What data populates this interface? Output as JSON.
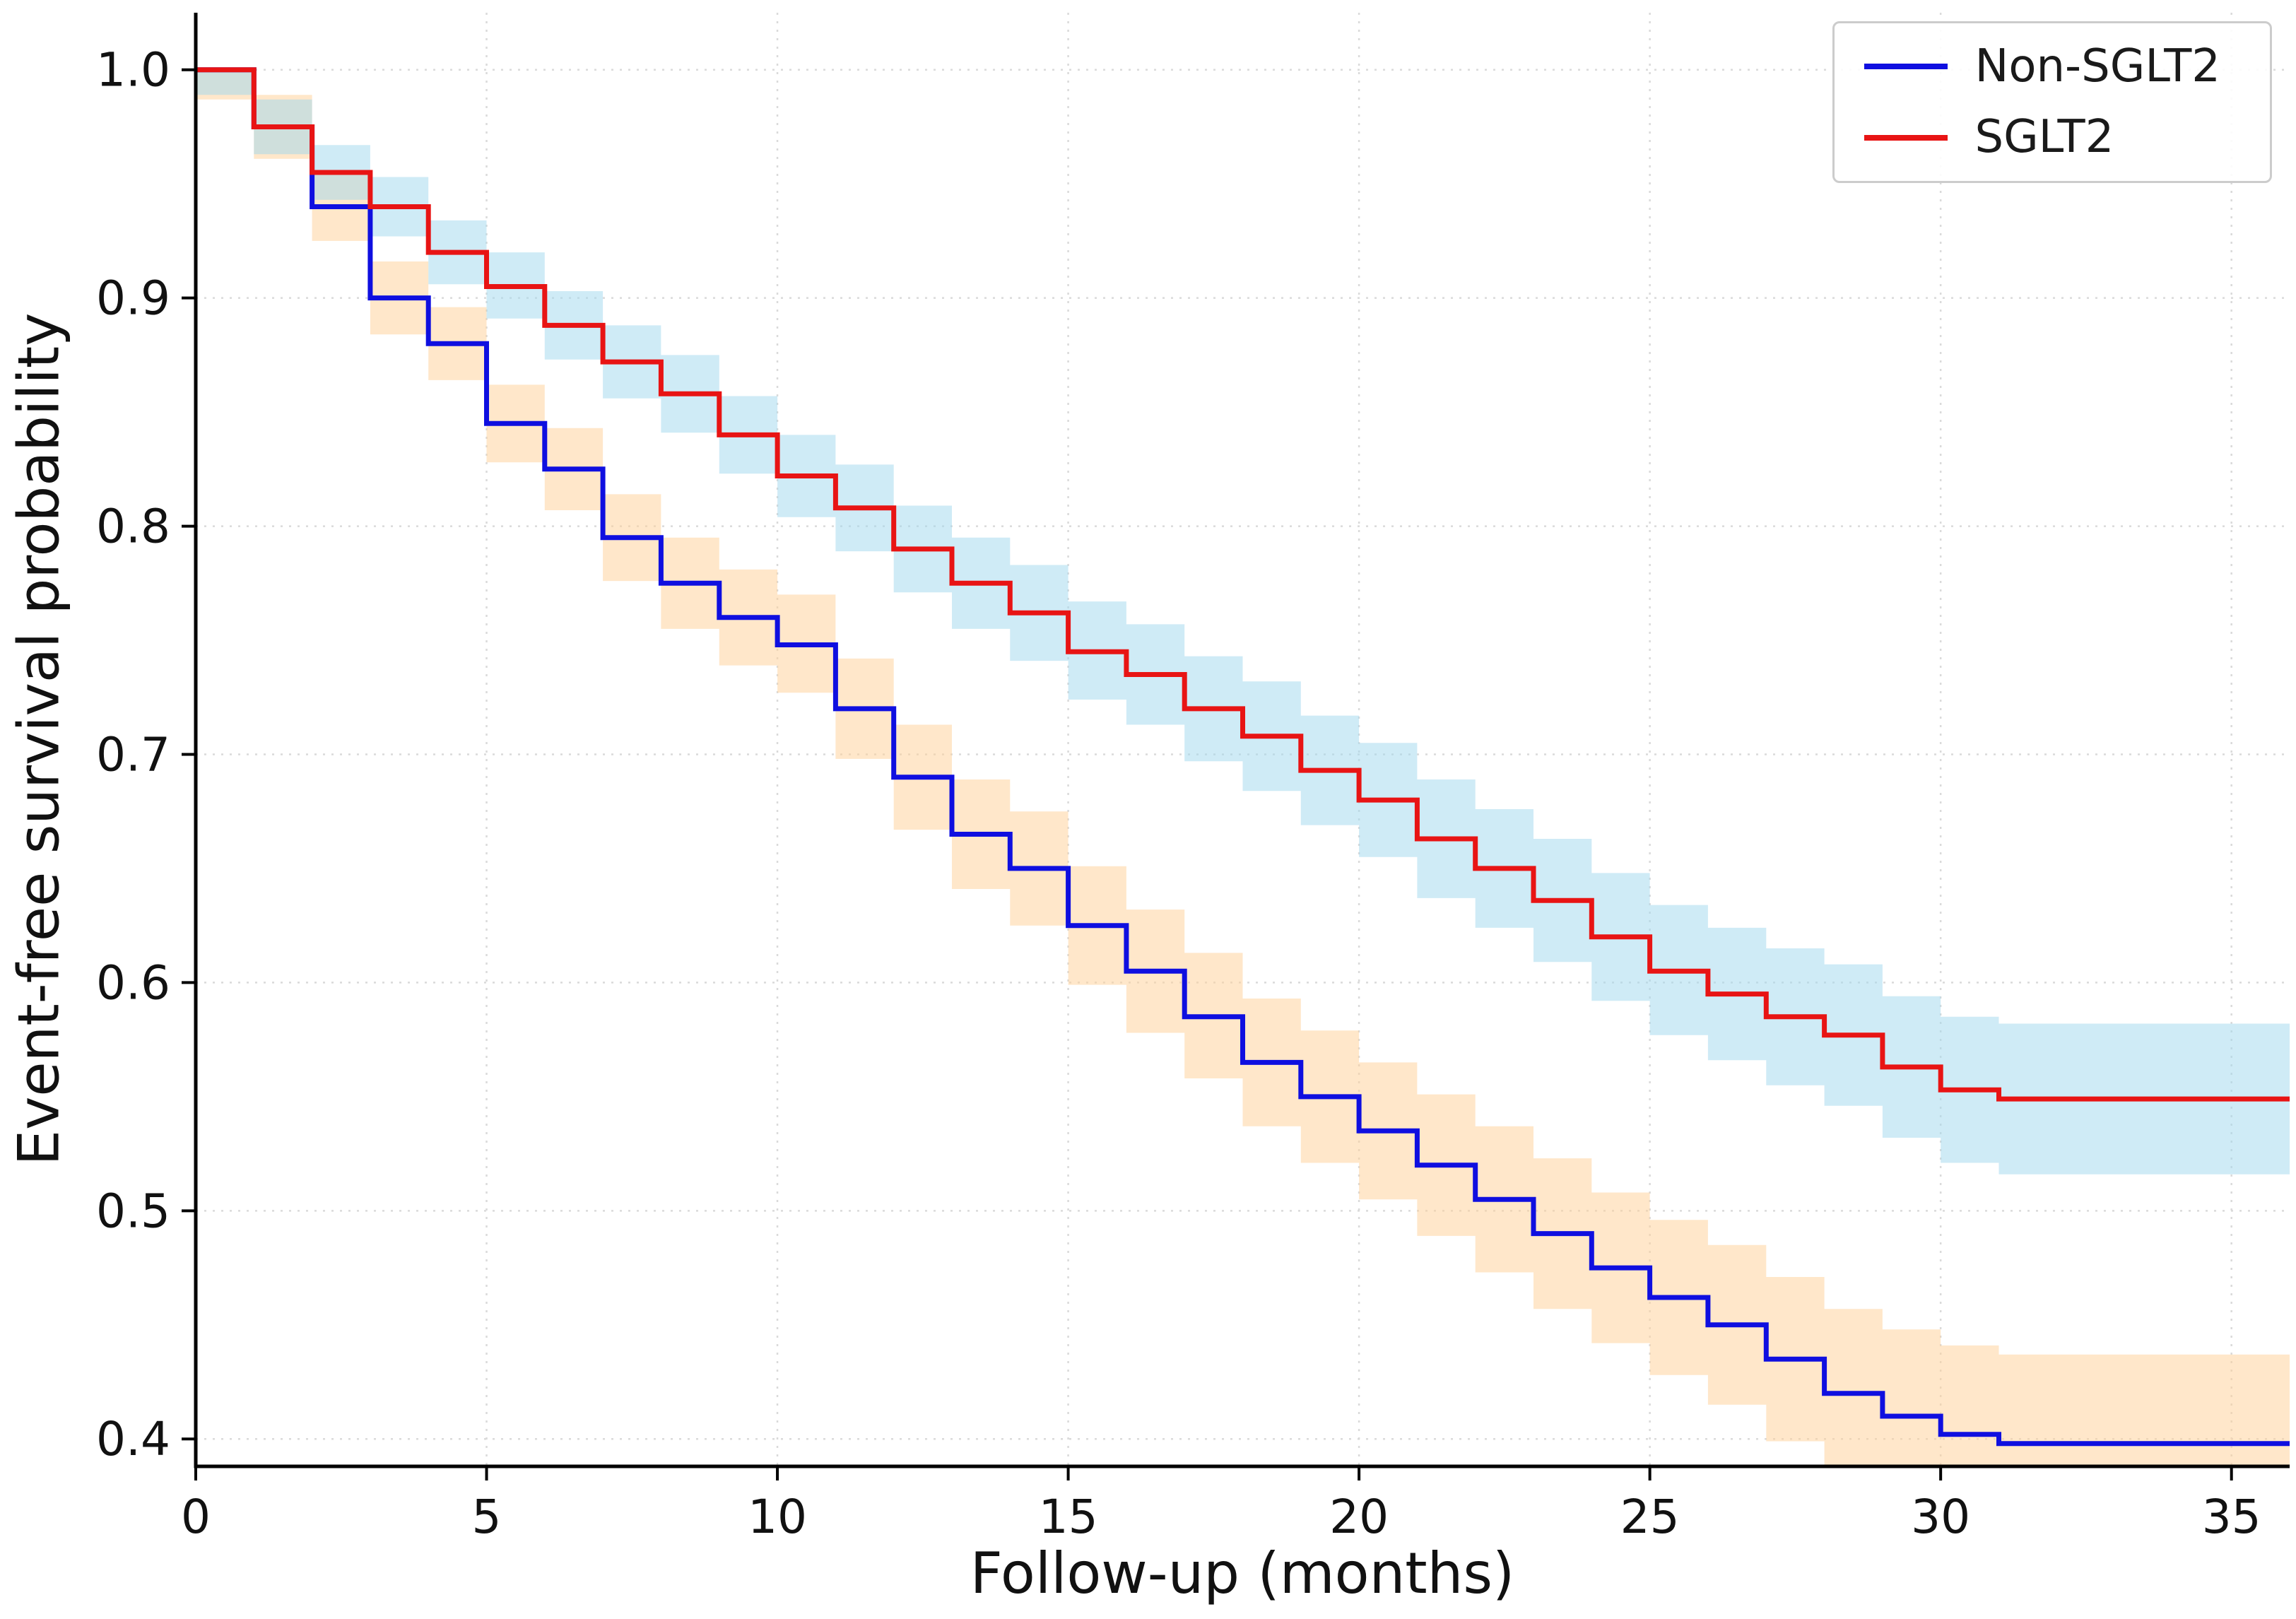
{
  "chart_data": {
    "type": "line",
    "chart_style": "kaplan_meier_step",
    "title": "",
    "xlabel": "Follow-up (months)",
    "ylabel": "Event-free survival probability",
    "xlim": [
      0,
      36
    ],
    "ylim": [
      0.388,
      1.025
    ],
    "xticks": [
      0,
      5,
      10,
      15,
      20,
      25,
      30,
      35
    ],
    "xtick_labels": [
      "0",
      "5",
      "10",
      "15",
      "20",
      "25",
      "30",
      "35"
    ],
    "yticks": [
      0.4,
      0.5,
      0.6,
      0.7,
      0.8,
      0.9,
      1.0
    ],
    "ytick_labels": [
      "0.4",
      "0.5",
      "0.6",
      "0.7",
      "0.8",
      "0.9",
      "1.0"
    ],
    "grid": true,
    "legend": {
      "position": "upper right",
      "entries": [
        "Non-SGLT2",
        "SGLT2"
      ]
    },
    "x_months": [
      0,
      1,
      2,
      3,
      4,
      5,
      6,
      7,
      8,
      9,
      10,
      11,
      12,
      13,
      14,
      15,
      16,
      17,
      18,
      19,
      20,
      21,
      22,
      23,
      24,
      25,
      26,
      27,
      28,
      29,
      30,
      31,
      32,
      33,
      34,
      35,
      36
    ],
    "series": [
      {
        "name": "Non-SGLT2",
        "color": "#0f0fe0",
        "band_color": "#ffcf96",
        "band_opacity": 0.5,
        "y": [
          1.0,
          0.975,
          0.94,
          0.9,
          0.88,
          0.845,
          0.825,
          0.795,
          0.775,
          0.76,
          0.748,
          0.72,
          0.69,
          0.665,
          0.65,
          0.625,
          0.605,
          0.585,
          0.565,
          0.55,
          0.535,
          0.52,
          0.505,
          0.49,
          0.475,
          0.462,
          0.45,
          0.435,
          0.42,
          0.41,
          0.402,
          0.398,
          0.398,
          0.398,
          0.398,
          0.398,
          0.398
        ],
        "ci_lower": [
          0.987,
          0.961,
          0.925,
          0.884,
          0.864,
          0.828,
          0.807,
          0.776,
          0.755,
          0.739,
          0.727,
          0.698,
          0.667,
          0.641,
          0.625,
          0.599,
          0.578,
          0.558,
          0.537,
          0.521,
          0.505,
          0.489,
          0.473,
          0.457,
          0.442,
          0.428,
          0.415,
          0.399,
          0.383,
          0.372,
          0.364,
          0.359,
          0.359,
          0.359,
          0.359,
          0.359,
          0.359
        ],
        "ci_upper": [
          1.0,
          0.989,
          0.955,
          0.916,
          0.896,
          0.862,
          0.843,
          0.814,
          0.795,
          0.781,
          0.77,
          0.742,
          0.713,
          0.689,
          0.675,
          0.651,
          0.632,
          0.613,
          0.593,
          0.579,
          0.565,
          0.551,
          0.537,
          0.523,
          0.508,
          0.496,
          0.485,
          0.471,
          0.457,
          0.448,
          0.441,
          0.437,
          0.437,
          0.437,
          0.437,
          0.437,
          0.437
        ]
      },
      {
        "name": "SGLT2",
        "color": "#e81414",
        "band_color": "#9fd8ee",
        "band_opacity": 0.5,
        "y": [
          1.0,
          0.975,
          0.955,
          0.94,
          0.92,
          0.905,
          0.888,
          0.872,
          0.858,
          0.84,
          0.822,
          0.808,
          0.79,
          0.775,
          0.762,
          0.745,
          0.735,
          0.72,
          0.708,
          0.693,
          0.68,
          0.663,
          0.65,
          0.636,
          0.62,
          0.605,
          0.595,
          0.585,
          0.577,
          0.563,
          0.553,
          0.549,
          0.549,
          0.549,
          0.549,
          0.549,
          0.549
        ],
        "ci_lower": [
          0.989,
          0.963,
          0.943,
          0.927,
          0.906,
          0.891,
          0.873,
          0.856,
          0.841,
          0.823,
          0.804,
          0.789,
          0.771,
          0.755,
          0.741,
          0.724,
          0.713,
          0.697,
          0.684,
          0.669,
          0.655,
          0.637,
          0.624,
          0.609,
          0.592,
          0.577,
          0.566,
          0.555,
          0.546,
          0.532,
          0.521,
          0.516,
          0.516,
          0.516,
          0.516,
          0.516,
          0.516
        ],
        "ci_upper": [
          1.0,
          0.987,
          0.967,
          0.953,
          0.934,
          0.92,
          0.903,
          0.888,
          0.875,
          0.857,
          0.84,
          0.827,
          0.809,
          0.795,
          0.783,
          0.767,
          0.757,
          0.743,
          0.732,
          0.717,
          0.705,
          0.689,
          0.676,
          0.663,
          0.648,
          0.634,
          0.624,
          0.615,
          0.608,
          0.594,
          0.585,
          0.582,
          0.582,
          0.582,
          0.582,
          0.582,
          0.582
        ]
      }
    ]
  }
}
